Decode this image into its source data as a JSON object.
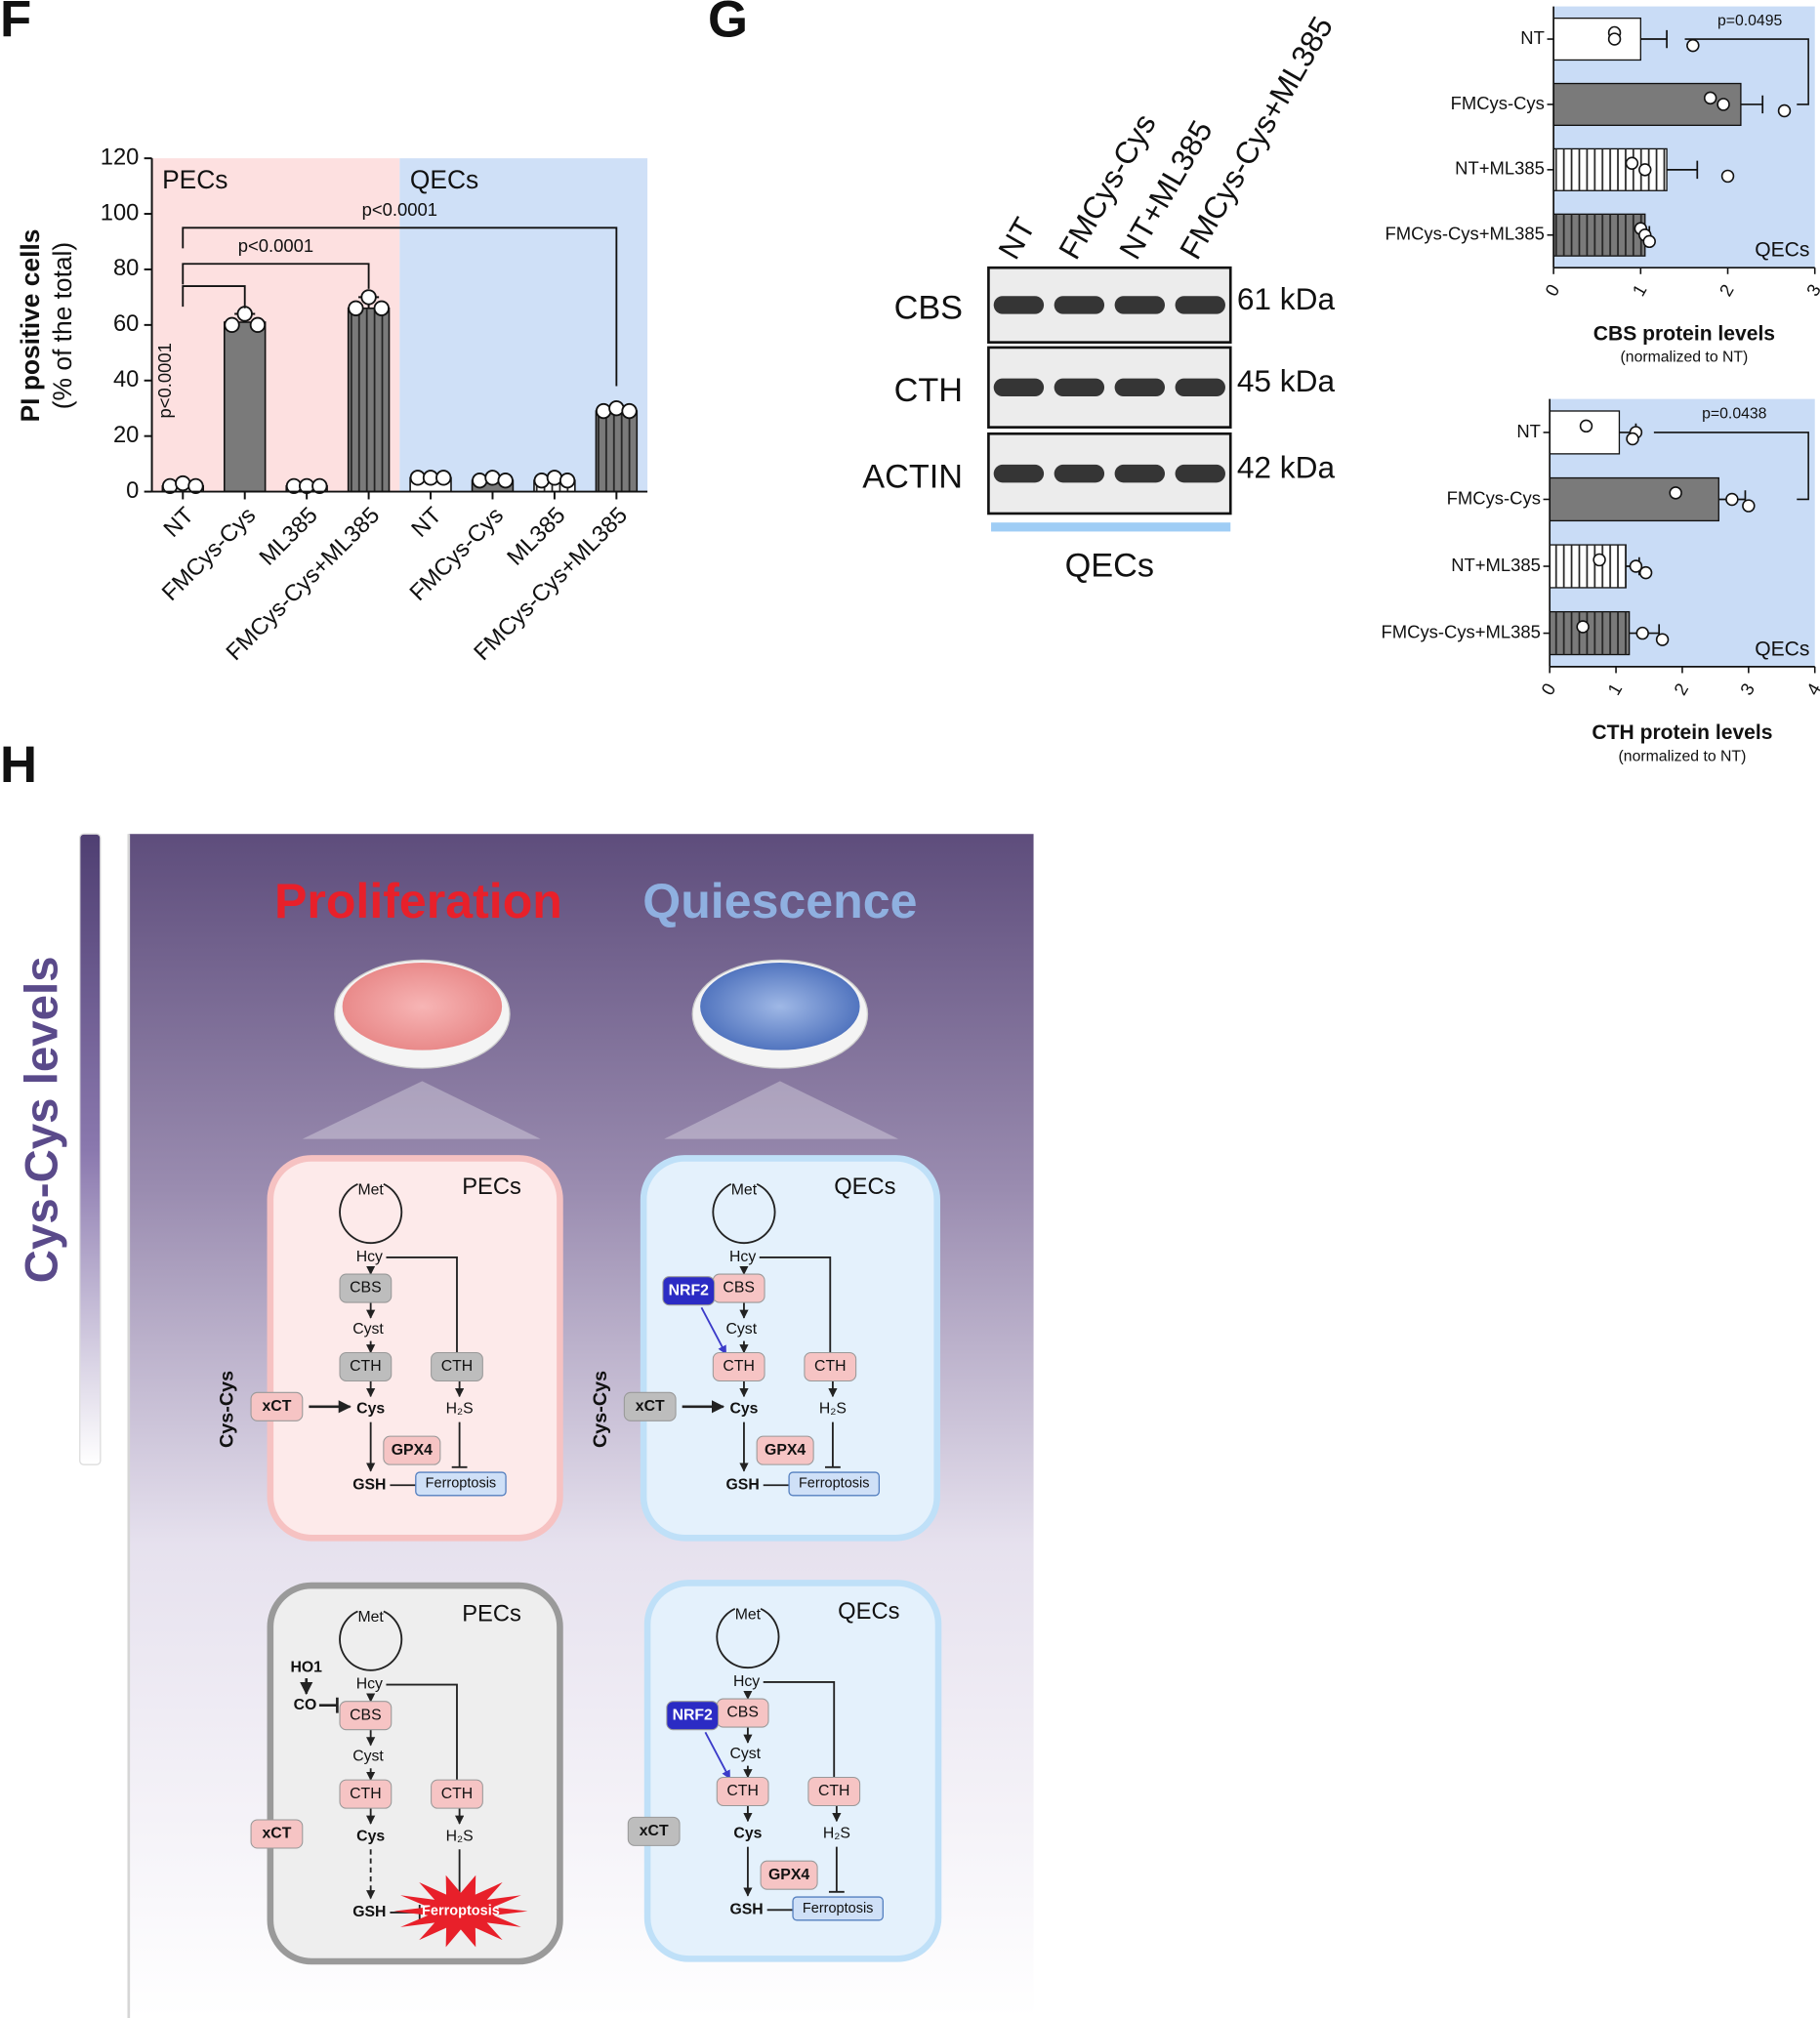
{
  "panel_labels": [
    "F",
    "G",
    "H"
  ],
  "chart_data": [
    {
      "type": "bar",
      "orientation": "vertical",
      "ylabel": "PI positive cells",
      "ylabel_sub": "(% of the total)",
      "groups": [
        "PECs",
        "QECs"
      ],
      "group_colors": [
        "#fde0e0",
        "#cfe0f7"
      ],
      "categories": [
        "NT",
        "FMCys-Cys",
        "ML385",
        "FMCys-Cys+ML385",
        "NT",
        "FMCys-Cys",
        "ML385",
        "FMCys-Cys+ML385"
      ],
      "values": [
        2,
        61,
        2,
        66,
        5,
        4,
        4,
        29
      ],
      "errors": [
        1,
        3,
        0.5,
        4,
        0.5,
        1,
        1,
        1
      ],
      "points": [
        [
          2,
          3,
          2
        ],
        [
          60,
          64,
          60
        ],
        [
          2,
          2,
          2
        ],
        [
          66,
          70,
          66
        ],
        [
          5,
          5,
          5
        ],
        [
          4,
          5,
          4
        ],
        [
          4,
          5,
          4
        ],
        [
          29,
          30,
          29
        ]
      ],
      "colors": [
        "#ffffff",
        "#7a7a7a",
        "#ffffff",
        "#7a7a7a",
        "#ffffff",
        "#7a7a7a",
        "#ffffff",
        "#7a7a7a"
      ],
      "hatch": [
        false,
        false,
        true,
        true,
        false,
        false,
        true,
        true
      ],
      "ylim": [
        0,
        120
      ],
      "yticks": [
        0,
        20,
        40,
        60,
        80,
        100,
        120
      ],
      "annotations": [
        "p<0.0001",
        "p<0.0001",
        "p<0.0001"
      ]
    },
    {
      "type": "bar",
      "orientation": "horizontal",
      "xlabel": "CBS protein levels",
      "xlabel_sub": "(normalized to NT)",
      "panel": "QECs",
      "background": "#c9dcf6",
      "categories": [
        "NT",
        "FMCys-Cys",
        "NT+ML385",
        "FMCys-Cys+ML385"
      ],
      "values": [
        1.0,
        2.15,
        1.3,
        1.05
      ],
      "errors": [
        0.3,
        0.25,
        0.35,
        0.05
      ],
      "points": [
        [
          0.7,
          0.7,
          1.6
        ],
        [
          1.8,
          1.95,
          2.65
        ],
        [
          0.9,
          1.05,
          2.0
        ],
        [
          1.0,
          1.05,
          1.1
        ]
      ],
      "colors": [
        "#ffffff",
        "#7a7a7a",
        "#ffffff",
        "#7a7a7a"
      ],
      "hatch": [
        false,
        false,
        true,
        true
      ],
      "xlim": [
        0,
        3
      ],
      "xticks": [
        0,
        1,
        2,
        3
      ],
      "annotations": [
        "p=0.0495"
      ]
    },
    {
      "type": "bar",
      "orientation": "horizontal",
      "xlabel": "CTH protein levels",
      "xlabel_sub": "(normalized to NT)",
      "panel": "QECs",
      "background": "#c9dcf6",
      "categories": [
        "NT",
        "FMCys-Cys",
        "NT+ML385",
        "FMCys-Cys+ML385"
      ],
      "values": [
        1.05,
        2.55,
        1.15,
        1.2
      ],
      "errors": [
        0.25,
        0.4,
        0.2,
        0.45
      ],
      "points": [
        [
          0.55,
          1.3,
          1.25
        ],
        [
          1.9,
          2.75,
          3.0
        ],
        [
          0.75,
          1.3,
          1.45
        ],
        [
          0.5,
          1.4,
          1.7
        ]
      ],
      "colors": [
        "#ffffff",
        "#7a7a7a",
        "#ffffff",
        "#7a7a7a"
      ],
      "hatch": [
        false,
        false,
        true,
        true
      ],
      "xlim": [
        0,
        4
      ],
      "xticks": [
        0,
        1,
        2,
        3,
        4
      ],
      "annotations": [
        "p=0.0438"
      ]
    }
  ],
  "blot": {
    "lanes": [
      "NT",
      "FMCys-Cys",
      "NT+ML385",
      "FMCys-Cys+ML385"
    ],
    "rows": [
      {
        "name": "CBS",
        "size": "61 kDa"
      },
      {
        "name": "CTH",
        "size": "45 kDa"
      },
      {
        "name": "ACTIN",
        "size": "42 kDa"
      }
    ],
    "group": "QECs"
  },
  "diagram": {
    "side_label": "Cys-Cys levels",
    "headings": [
      {
        "text": "Proliferation",
        "color": "#e8202a"
      },
      {
        "text": "Quiescence",
        "color": "#8fb0e0"
      }
    ],
    "cells": [
      {
        "name": "PECs",
        "fill": "#fdeaea",
        "border": "#f6c2c2",
        "enzyme_color": "#bdbdbd",
        "xct_color": "#f6c4c4",
        "ferroptosis_color": "#cfe0f7",
        "ferroptosis_shape": "box",
        "side_label": "Cys-Cys",
        "met": "Met",
        "hcy": "Hcy",
        "cbs": "CBS",
        "cyst": "Cyst",
        "cth_left": "CTH",
        "cth_right": "CTH",
        "cys": "Cys",
        "h2s": "H₂S",
        "xct": "xCT",
        "gpx4": "GPX4",
        "gsh": "GSH",
        "ferroptosis": "Ferroptosis"
      },
      {
        "name": "QECs",
        "fill": "#e4f1fc",
        "border": "#bfe0f8",
        "enzyme_color": "#f6c4c4",
        "xct_color": "#bdbdbd",
        "ferroptosis_color": "#cfe0f7",
        "ferroptosis_shape": "box",
        "side_label": "Cys-Cys",
        "met": "Met",
        "hcy": "Hcy",
        "nrf2": "NRF2",
        "cbs": "CBS",
        "cyst": "Cyst",
        "cth_left": "CTH",
        "cth_right": "CTH",
        "cys": "Cys",
        "h2s": "H₂S",
        "xct": "xCT",
        "gpx4": "GPX4",
        "gsh": "GSH",
        "ferroptosis": "Ferroptosis"
      },
      {
        "name": "PECs",
        "fill": "#eeeeee",
        "border": "#9a9a9a",
        "enzyme_color": "#f6c4c4",
        "xct_color": "#f6c4c4",
        "ferroptosis_color": "#e8202a",
        "ferroptosis_shape": "burst",
        "met": "Met",
        "ho1": "HO1",
        "co": "CO",
        "hcy": "Hcy",
        "cbs": "CBS",
        "cyst": "Cyst",
        "cth_left": "CTH",
        "cth_right": "CTH",
        "cys": "Cys",
        "h2s": "H₂S",
        "xct": "xCT",
        "gsh": "GSH",
        "ferroptosis": "Ferroptosis"
      },
      {
        "name": "QECs",
        "fill": "#e4f1fc",
        "border": "#bfe0f8",
        "enzyme_color": "#f6c4c4",
        "xct_color": "#bdbdbd",
        "ferroptosis_color": "#cfe0f7",
        "ferroptosis_shape": "box",
        "met": "Met",
        "hcy": "Hcy",
        "nrf2": "NRF2",
        "cbs": "CBS",
        "cyst": "Cyst",
        "cth_left": "CTH",
        "cth_right": "CTH",
        "cys": "Cys",
        "h2s": "H₂S",
        "xct": "xCT",
        "gpx4": "GPX4",
        "gsh": "GSH",
        "ferroptosis": "Ferroptosis"
      }
    ]
  }
}
